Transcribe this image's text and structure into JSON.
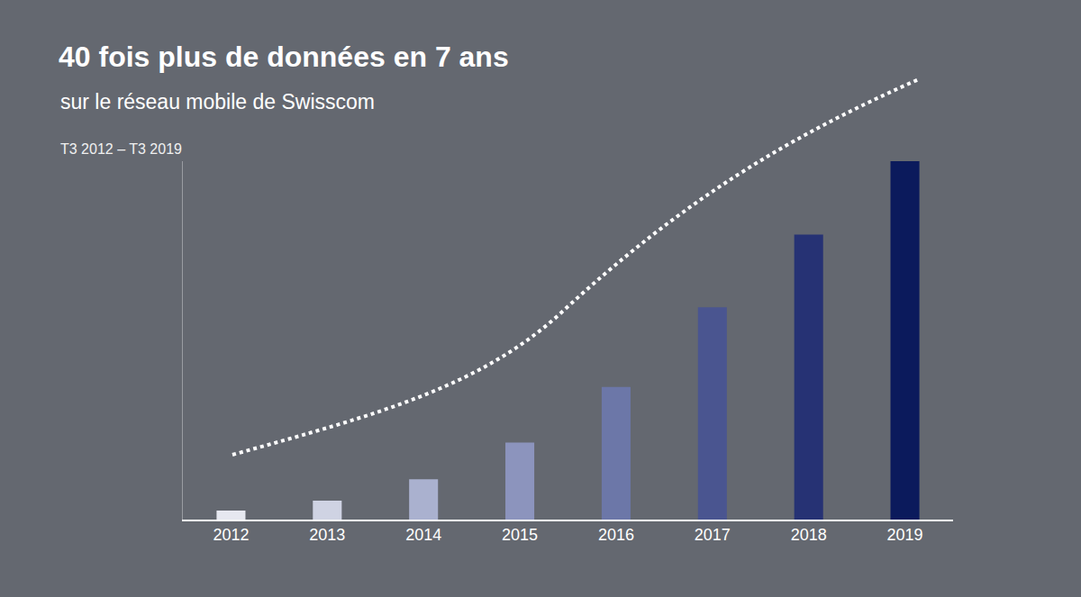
{
  "chart_data": {
    "type": "bar",
    "title": "40 fois plus de données en 7 ans",
    "subtitle": "sur le réseau mobile de Swisscom",
    "annotations": [
      "T3 2012 – T3 2019"
    ],
    "categories": [
      "2012",
      "2013",
      "2014",
      "2015",
      "2016",
      "2017",
      "2018",
      "2019"
    ],
    "values": [
      1,
      2.1,
      4.5,
      8.6,
      14.8,
      23.7,
      31.8,
      40
    ],
    "colors": [
      "#e6e8f0",
      "#cfd3e3",
      "#aab1cf",
      "#8c94bd",
      "#6c77a8",
      "#4a5590",
      "#263274",
      "#0b1a5c"
    ],
    "ylim": [
      0,
      40
    ],
    "yticks": [],
    "grid": false,
    "data_labels": false,
    "tick_labels": "x"
  }
}
